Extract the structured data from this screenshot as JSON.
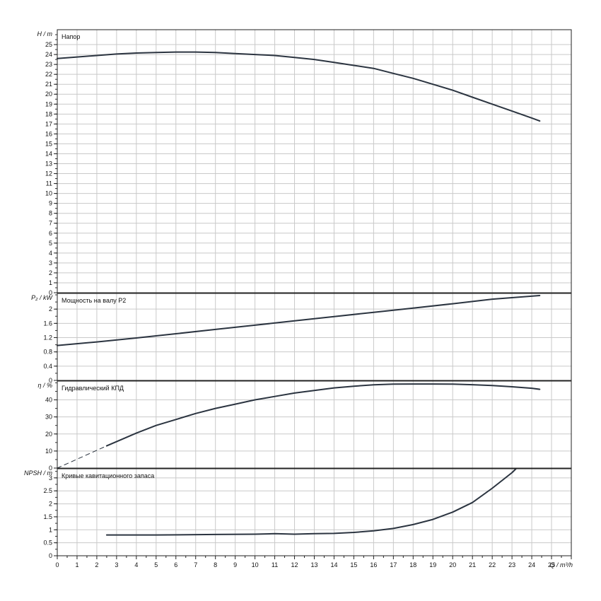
{
  "chart_data": {
    "type": "line",
    "x_axis": {
      "label": "Q / m³/h",
      "range": [
        0,
        26
      ],
      "ticks": [
        "0",
        "1",
        "2",
        "3",
        "4",
        "5",
        "6",
        "7",
        "8",
        "9",
        "10",
        "11",
        "12",
        "13",
        "14",
        "15",
        "16",
        "17",
        "18",
        "19",
        "20",
        "21",
        "22",
        "23",
        "24",
        "25"
      ]
    },
    "panels": [
      {
        "id": "head",
        "title": "Напор",
        "ylabel": "H / m",
        "ylim": [
          0,
          26.5
        ],
        "yticks": [
          "0",
          "1",
          "2",
          "3",
          "4",
          "5",
          "6",
          "7",
          "8",
          "9",
          "10",
          "11",
          "12",
          "13",
          "14",
          "15",
          "16",
          "17",
          "18",
          "19",
          "20",
          "21",
          "22",
          "23",
          "24",
          "25"
        ],
        "series": [
          {
            "x": [
              0,
              1,
              2,
              3,
              4,
              5,
              6,
              7,
              8,
              9,
              10,
              11,
              12,
              13,
              14,
              15,
              16,
              17,
              18,
              19,
              20,
              21,
              22,
              23,
              24,
              24.4
            ],
            "y": [
              23.6,
              23.75,
              23.9,
              24.05,
              24.15,
              24.2,
              24.25,
              24.25,
              24.2,
              24.1,
              24.0,
              23.9,
              23.7,
              23.5,
              23.2,
              22.9,
              22.6,
              22.1,
              21.6,
              21.0,
              20.4,
              19.7,
              19.0,
              18.3,
              17.6,
              17.3
            ]
          }
        ]
      },
      {
        "id": "power",
        "title": "Мощность на валу P2",
        "ylabel": "P₂ / kW",
        "ylim": [
          0,
          2.44
        ],
        "yticks": [
          "0",
          "0.4",
          "0.8",
          "1.2",
          "1.6",
          "2"
        ],
        "series": [
          {
            "x": [
              0,
              2,
              4,
              6,
              8,
              10,
              12,
              14,
              16,
              18,
              20,
              22,
              24.4
            ],
            "y": [
              0.98,
              1.08,
              1.19,
              1.31,
              1.43,
              1.55,
              1.67,
              1.79,
              1.91,
              2.03,
              2.15,
              2.28,
              2.38
            ]
          }
        ]
      },
      {
        "id": "efficiency",
        "title": "Гидравлический КПД",
        "ylabel": "η / %",
        "ylim": [
          0,
          51
        ],
        "yticks": [
          "0",
          "10",
          "20",
          "30",
          "40"
        ],
        "series": [
          {
            "x": [
              2.5,
              3,
              4,
              5,
              6,
              7,
              8,
              9,
              10,
              11,
              12,
              13,
              14,
              15,
              16,
              17,
              18,
              19,
              20,
              21,
              22,
              23,
              24,
              24.4
            ],
            "y": [
              13,
              15.5,
              20.5,
              25,
              28.5,
              32,
              35,
              37.5,
              40,
              42,
              44,
              45.5,
              47,
              48,
              48.8,
              49.2,
              49.3,
              49.3,
              49.2,
              48.9,
              48.4,
              47.7,
              46.8,
              46.2
            ]
          },
          {
            "x": [
              0,
              2.5
            ],
            "y": [
              0,
              13
            ],
            "dashed": true
          }
        ]
      },
      {
        "id": "npsh",
        "title": "Кривые кавитационного запаса",
        "ylabel": "NPSH / m",
        "ylim": [
          0,
          3.35
        ],
        "yticks": [
          "0",
          "0.5",
          "1",
          "1.5",
          "2",
          "2.5",
          "3"
        ],
        "series": [
          {
            "x": [
              2.5,
              5,
              8,
              10,
              11,
              12,
              13,
              14,
              15,
              16,
              17,
              18,
              19,
              20,
              21,
              22,
              23,
              23.2
            ],
            "y": [
              0.8,
              0.8,
              0.82,
              0.83,
              0.85,
              0.83,
              0.85,
              0.86,
              0.9,
              0.96,
              1.05,
              1.2,
              1.4,
              1.68,
              2.05,
              2.6,
              3.2,
              3.35
            ]
          }
        ]
      }
    ]
  }
}
